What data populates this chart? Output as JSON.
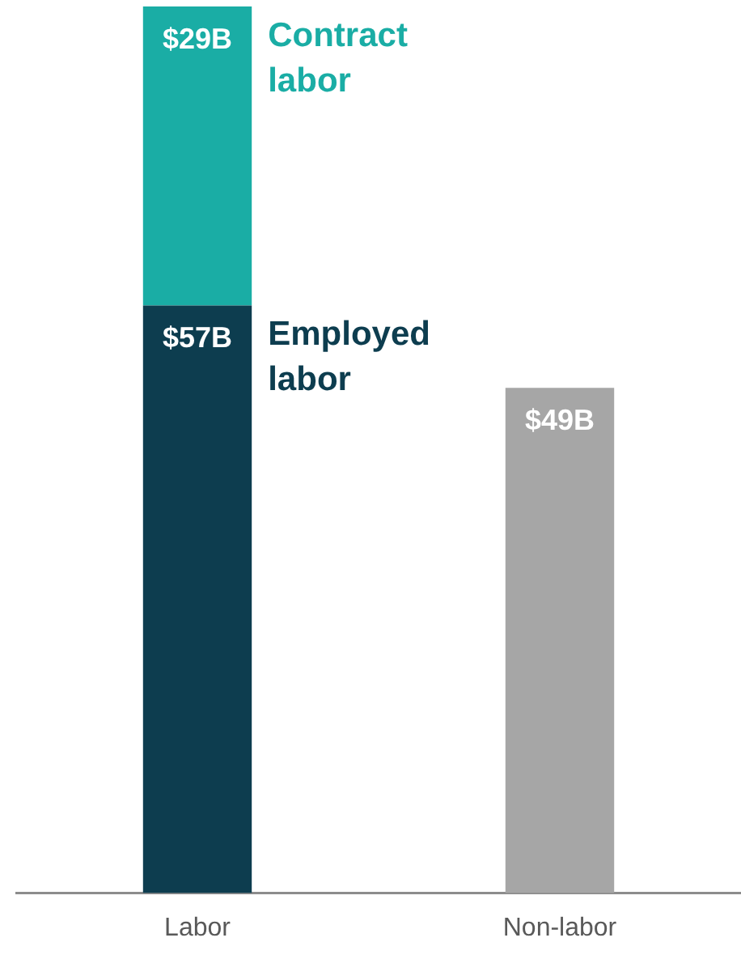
{
  "chart_data": {
    "type": "bar",
    "categories": [
      "Labor",
      "Non-labor"
    ],
    "stacked": true,
    "ylim": [
      0,
      86
    ],
    "tick_labels": "x",
    "legend": false,
    "grid": false,
    "series": [
      {
        "name": "Employed labor",
        "color": "#0d3d4f",
        "values": [
          57,
          null
        ],
        "value_labels": [
          "$57B",
          null
        ]
      },
      {
        "name": "Contract labor",
        "color": "#1aada5",
        "values": [
          29,
          null
        ],
        "value_labels": [
          "$29B",
          null
        ]
      },
      {
        "color": "#a6a6a6",
        "values": [
          null,
          49
        ],
        "value_labels": [
          null,
          "$49B"
        ]
      }
    ]
  }
}
